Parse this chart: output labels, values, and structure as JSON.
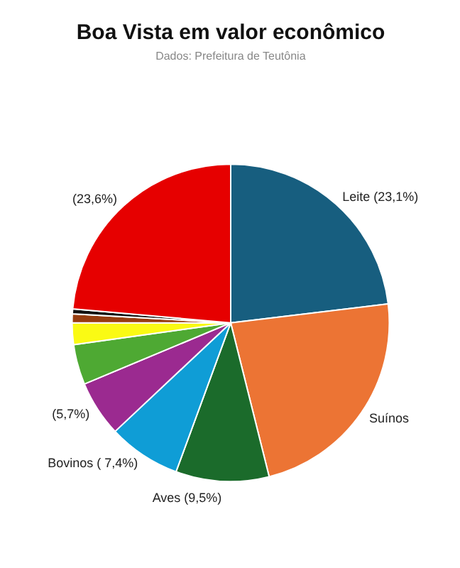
{
  "chart_data": {
    "type": "pie",
    "title": "Boa Vista em valor econômico",
    "subtitle": "Dados: Prefeitura de Teutônia",
    "categories": [
      "Leite",
      "Suínos",
      "Aves",
      "Bovinos",
      null,
      null,
      null,
      null,
      null,
      null
    ],
    "values": [
      23.1,
      23.0,
      9.5,
      7.4,
      5.7,
      4.1,
      2.2,
      0.9,
      0.5,
      23.6
    ],
    "colors": [
      "#175e7f",
      "#ec7434",
      "#1b6b2b",
      "#0f9dd6",
      "#9b2a90",
      "#4ea933",
      "#fafa14",
      "#973d10",
      "#111111",
      "#e60000"
    ],
    "value_labels": [
      "(23,1%)",
      null,
      "(9,5%)",
      "( 7,4%)",
      "(5,7%)",
      null,
      null,
      null,
      null,
      "(23,6%)"
    ]
  }
}
